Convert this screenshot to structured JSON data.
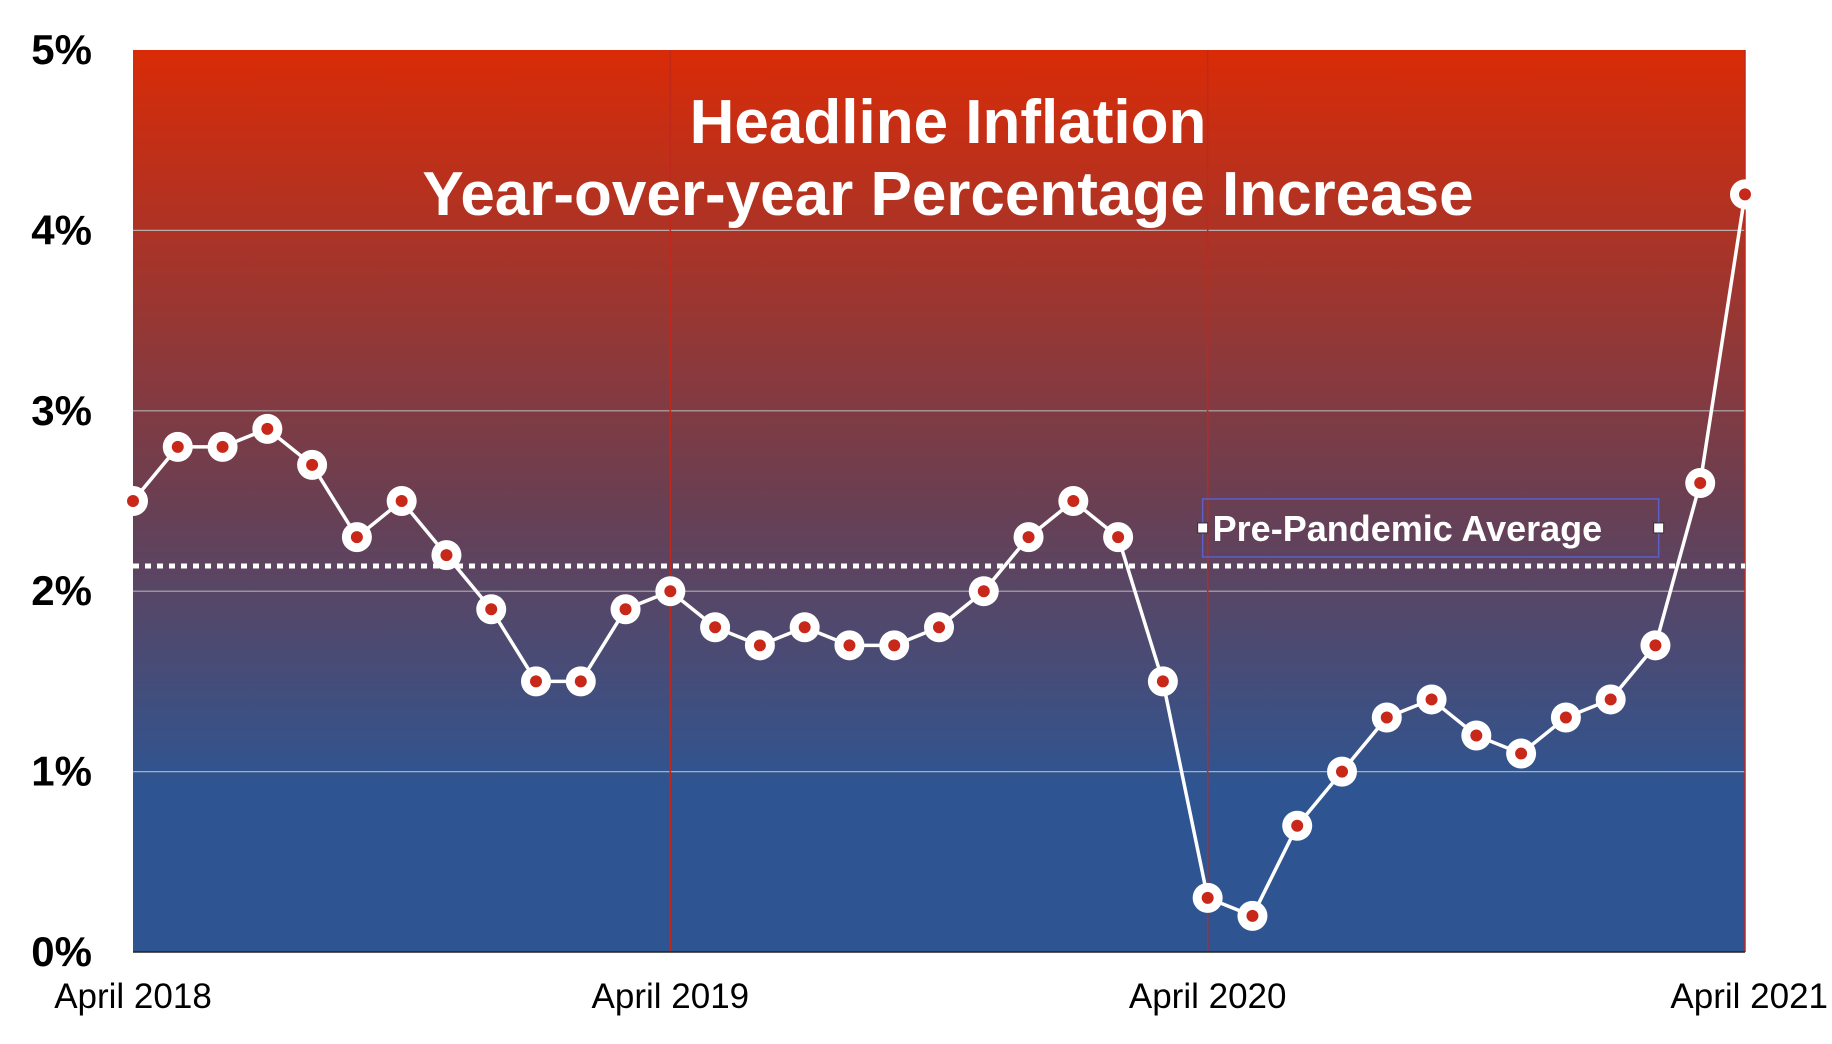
{
  "chart_data": {
    "type": "line",
    "title": "Headline Inflation",
    "subtitle": "Year-over-year Percentage Increase",
    "xlabel": "",
    "ylabel": "",
    "ylim": [
      0,
      5
    ],
    "y_ticks": [
      "0%",
      "1%",
      "2%",
      "3%",
      "4%",
      "5%"
    ],
    "x_ticks": [
      "April 2018",
      "April 2019",
      "April 2020",
      "April 2021"
    ],
    "x": [
      "2018-04",
      "2018-05",
      "2018-06",
      "2018-07",
      "2018-08",
      "2018-09",
      "2018-10",
      "2018-11",
      "2018-12",
      "2019-01",
      "2019-02",
      "2019-03",
      "2019-04",
      "2019-05",
      "2019-06",
      "2019-07",
      "2019-08",
      "2019-09",
      "2019-10",
      "2019-11",
      "2019-12",
      "2020-01",
      "2020-02",
      "2020-03",
      "2020-04",
      "2020-05",
      "2020-06",
      "2020-07",
      "2020-08",
      "2020-09",
      "2020-10",
      "2020-11",
      "2020-12",
      "2021-01",
      "2021-02",
      "2021-03",
      "2021-04"
    ],
    "series": [
      {
        "values": [
          2.5,
          2.8,
          2.8,
          2.9,
          2.7,
          2.3,
          2.5,
          2.2,
          1.9,
          1.5,
          1.5,
          1.9,
          2.0,
          1.8,
          1.7,
          1.8,
          1.7,
          1.7,
          1.8,
          2.0,
          2.3,
          2.5,
          2.3,
          1.5,
          0.3,
          0.2,
          0.7,
          1.0,
          1.3,
          1.4,
          1.2,
          1.1,
          1.3,
          1.4,
          1.7,
          2.6,
          4.2
        ]
      }
    ],
    "reference_line": {
      "label": "Pre-Pandemic Average",
      "value": 2.14
    },
    "grid": true,
    "legend": "none",
    "colors": {
      "background_top": "#d92b07",
      "background_mid": "#6a3f52",
      "background_bottom": "#2e5592",
      "line": "#ffffff",
      "marker_fill": "#ffffff",
      "marker_dot": "#c8281a",
      "year_divider": "#c0281c"
    }
  }
}
